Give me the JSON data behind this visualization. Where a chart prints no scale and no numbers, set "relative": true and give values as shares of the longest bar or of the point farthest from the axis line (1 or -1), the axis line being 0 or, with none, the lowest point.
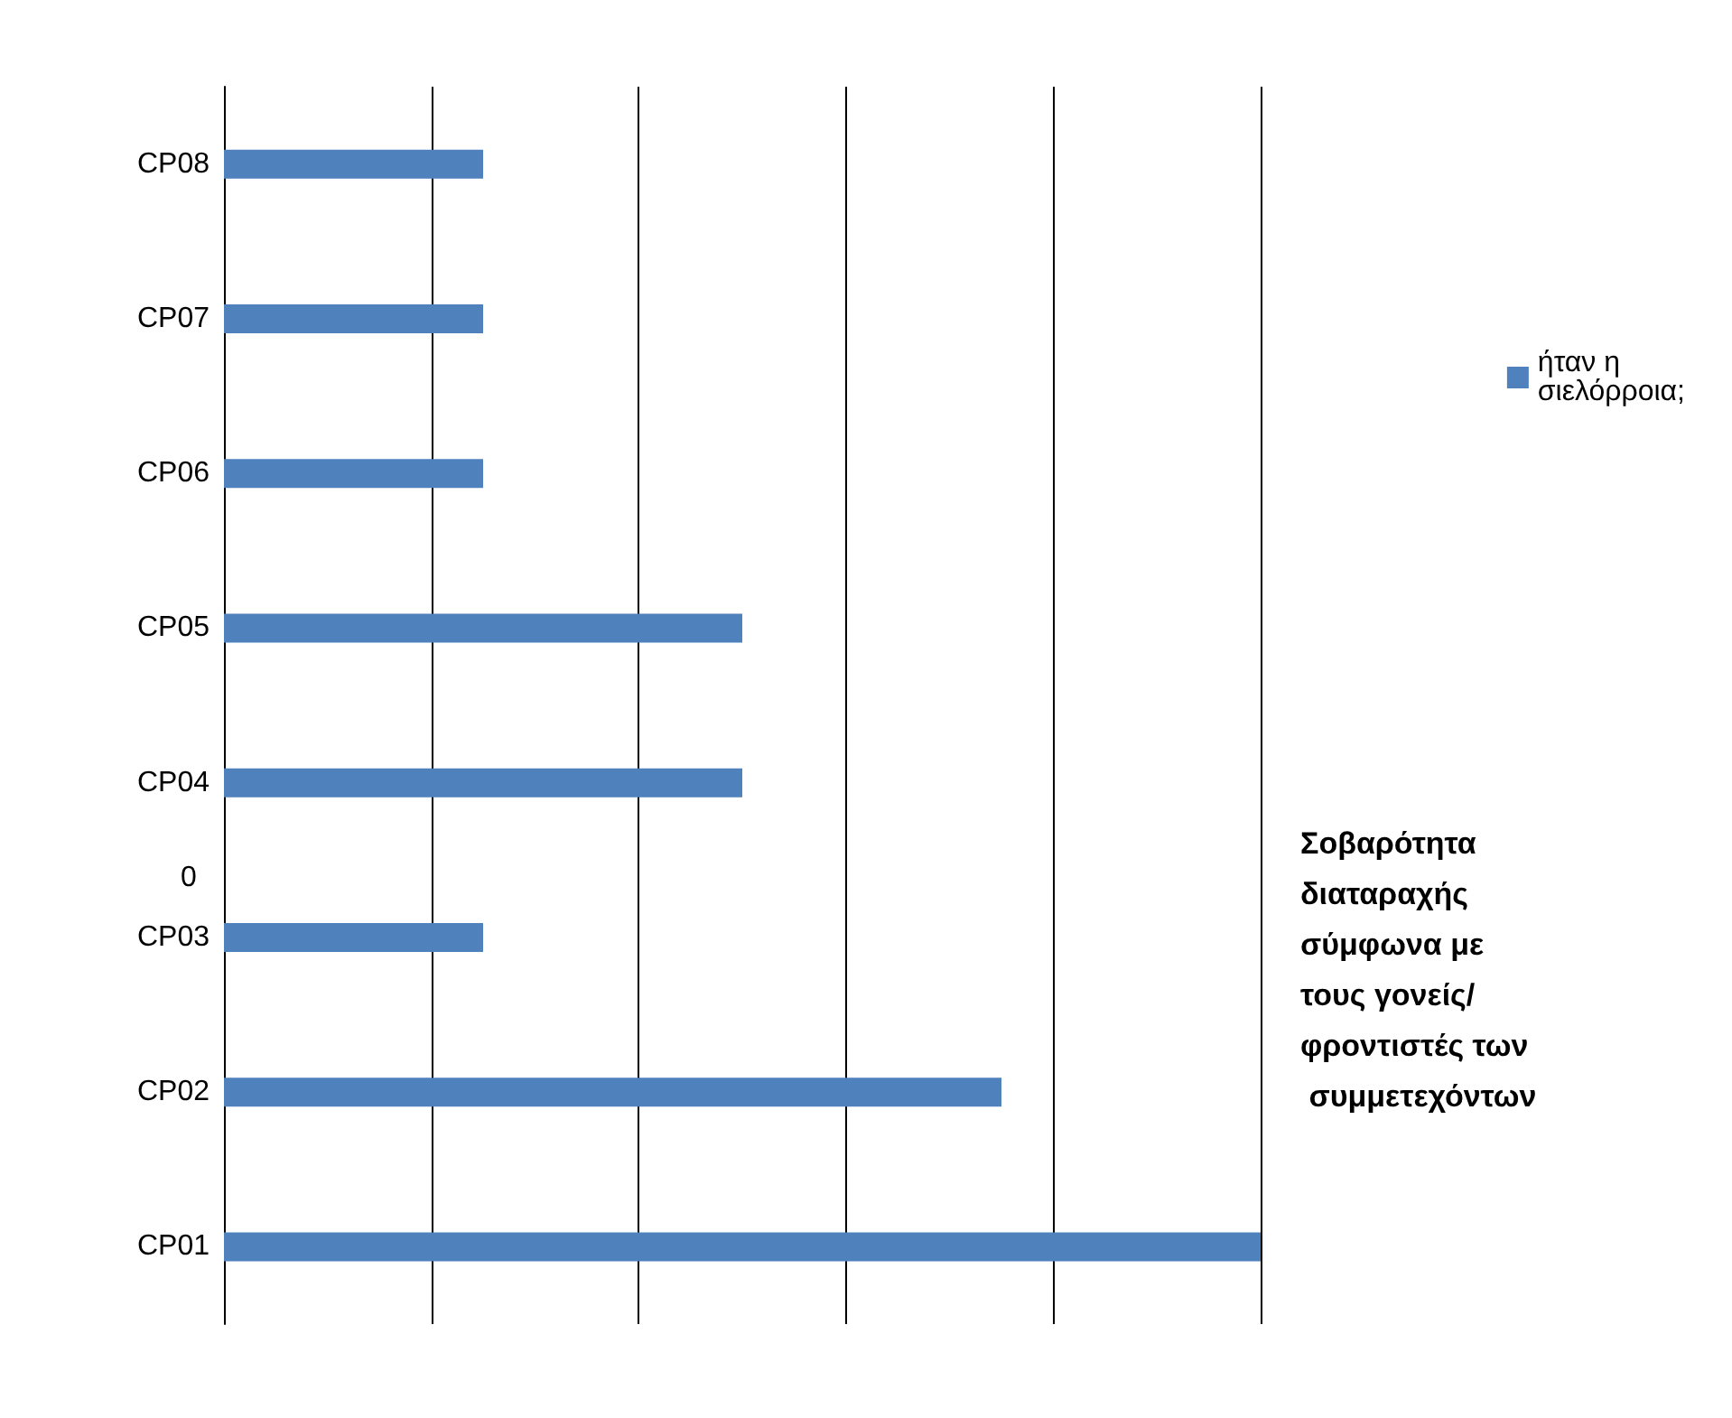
{
  "chart_data": {
    "type": "bar",
    "orientation": "horizontal",
    "relative": true,
    "categories": [
      "CP08",
      "CP07",
      "CP06",
      "CP05",
      "CP04",
      "CP03",
      "CP02",
      "CP01"
    ],
    "series": [
      {
        "name": "ήταν η σιελόρροια;",
        "color": "#4f81bd",
        "values": [
          0.25,
          0.25,
          0.25,
          0.5,
          0.5,
          0.25,
          0.75,
          1
        ]
      }
    ],
    "annotations": [
      "0",
      "Σοβαρότητα διαταραχής σύμφωνα με τους γονείς/φροντιστές των συμμετεχόντων"
    ],
    "grid": "x",
    "legend": "right"
  }
}
